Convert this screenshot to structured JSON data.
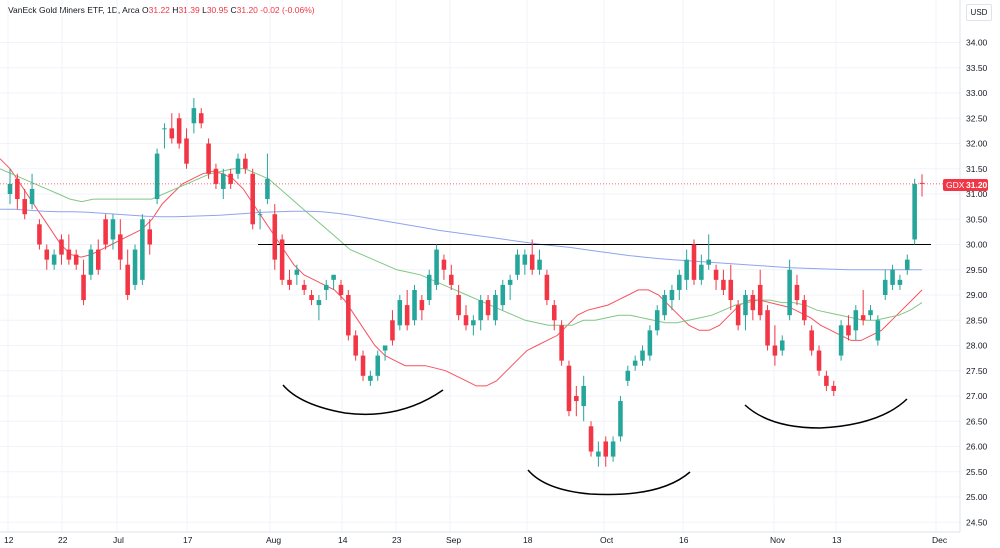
{
  "legend": {
    "symbol": "VanEck Gold Miners ETF, 1D, Arca",
    "o_label": "O",
    "o_value": "31.22",
    "h_label": "H",
    "h_value": "31.39",
    "l_label": "L",
    "l_value": "30.95",
    "c_label": "C",
    "c_value": "31.20",
    "change": "-0.02 (-0.06%)"
  },
  "currency": "USD",
  "colors": {
    "up": "#26a69a",
    "down": "#f23645",
    "ma_fast": "#f7525f",
    "ma_medium": "#81c784",
    "ma_slow": "#8fa4ee",
    "annotation": "#000000",
    "badge": "#f23645",
    "grid": "#f0f3fa"
  },
  "chart_data": {
    "type": "candlestick",
    "title": "VanEck Gold Miners ETF, 1D, Arca",
    "y_ticks": [
      "34.00",
      "33.50",
      "33.00",
      "32.50",
      "32.00",
      "31.50",
      "31.00",
      "30.50",
      "30.00",
      "29.50",
      "29.00",
      "28.50",
      "28.00",
      "27.50",
      "27.00",
      "26.50",
      "26.00",
      "25.50",
      "25.00",
      "24.50"
    ],
    "ylim": [
      24.3,
      34.5
    ],
    "x_ticks": [
      "12",
      "22",
      "Jul",
      "17",
      "Aug",
      "14",
      "23",
      "Sep",
      "18",
      "Oct",
      "16",
      "Nov",
      "13",
      "Dec"
    ],
    "price_badge": {
      "label": "GDX",
      "value": "31.20"
    },
    "resistance_level": 30.0,
    "candles": [
      {
        "o": 31.0,
        "h": 31.5,
        "l": 30.8,
        "c": 31.2
      },
      {
        "o": 31.3,
        "h": 31.4,
        "l": 30.7,
        "c": 30.9
      },
      {
        "o": 30.9,
        "h": 31.1,
        "l": 30.5,
        "c": 30.6
      },
      {
        "o": 30.8,
        "h": 31.4,
        "l": 30.7,
        "c": 31.1
      },
      {
        "o": 30.4,
        "h": 30.5,
        "l": 29.9,
        "c": 30.0
      },
      {
        "o": 29.9,
        "h": 30.0,
        "l": 29.5,
        "c": 29.7
      },
      {
        "o": 29.6,
        "h": 29.9,
        "l": 29.5,
        "c": 29.8
      },
      {
        "o": 30.1,
        "h": 30.2,
        "l": 29.6,
        "c": 29.8
      },
      {
        "o": 29.9,
        "h": 30.2,
        "l": 29.6,
        "c": 29.7
      },
      {
        "o": 29.8,
        "h": 29.9,
        "l": 29.5,
        "c": 29.6
      },
      {
        "o": 29.4,
        "h": 29.7,
        "l": 28.8,
        "c": 28.9
      },
      {
        "o": 29.4,
        "h": 30.0,
        "l": 29.3,
        "c": 29.9
      },
      {
        "o": 29.9,
        "h": 30.1,
        "l": 29.4,
        "c": 29.5
      },
      {
        "o": 30.5,
        "h": 30.6,
        "l": 29.9,
        "c": 30.0
      },
      {
        "o": 30.1,
        "h": 30.6,
        "l": 29.9,
        "c": 30.5
      },
      {
        "o": 30.2,
        "h": 30.5,
        "l": 29.5,
        "c": 29.7
      },
      {
        "o": 29.6,
        "h": 29.9,
        "l": 28.9,
        "c": 29.0
      },
      {
        "o": 29.2,
        "h": 30.0,
        "l": 29.1,
        "c": 29.9
      },
      {
        "o": 29.3,
        "h": 30.6,
        "l": 29.2,
        "c": 30.5
      },
      {
        "o": 30.3,
        "h": 30.5,
        "l": 29.8,
        "c": 30.0
      },
      {
        "o": 30.9,
        "h": 31.9,
        "l": 30.8,
        "c": 31.8
      },
      {
        "o": 32.3,
        "h": 32.4,
        "l": 31.9,
        "c": 32.3
      },
      {
        "o": 32.3,
        "h": 32.6,
        "l": 32.0,
        "c": 32.1
      },
      {
        "o": 32.5,
        "h": 32.6,
        "l": 31.9,
        "c": 32.0
      },
      {
        "o": 32.1,
        "h": 32.3,
        "l": 31.5,
        "c": 31.6
      },
      {
        "o": 32.4,
        "h": 32.9,
        "l": 32.2,
        "c": 32.7
      },
      {
        "o": 32.6,
        "h": 32.7,
        "l": 32.3,
        "c": 32.4
      },
      {
        "o": 32.0,
        "h": 32.1,
        "l": 31.3,
        "c": 31.4
      },
      {
        "o": 31.5,
        "h": 31.6,
        "l": 31.1,
        "c": 31.2
      },
      {
        "o": 31.1,
        "h": 31.5,
        "l": 30.9,
        "c": 31.4
      },
      {
        "o": 31.4,
        "h": 31.5,
        "l": 31.1,
        "c": 31.2
      },
      {
        "o": 31.4,
        "h": 31.8,
        "l": 31.3,
        "c": 31.7
      },
      {
        "o": 31.7,
        "h": 31.8,
        "l": 31.4,
        "c": 31.5
      },
      {
        "o": 31.4,
        "h": 31.5,
        "l": 30.3,
        "c": 30.4
      },
      {
        "o": 30.6,
        "h": 30.7,
        "l": 30.3,
        "c": 30.6
      },
      {
        "o": 30.9,
        "h": 31.8,
        "l": 30.8,
        "c": 31.3
      },
      {
        "o": 30.6,
        "h": 30.8,
        "l": 29.5,
        "c": 29.7
      },
      {
        "o": 30.1,
        "h": 30.2,
        "l": 29.2,
        "c": 29.3
      },
      {
        "o": 29.3,
        "h": 29.5,
        "l": 29.1,
        "c": 29.2
      },
      {
        "o": 29.4,
        "h": 29.6,
        "l": 29.2,
        "c": 29.5
      },
      {
        "o": 29.2,
        "h": 29.3,
        "l": 29.0,
        "c": 29.1
      },
      {
        "o": 29.0,
        "h": 29.1,
        "l": 28.8,
        "c": 28.9
      },
      {
        "o": 28.8,
        "h": 29.0,
        "l": 28.5,
        "c": 28.9
      },
      {
        "o": 29.1,
        "h": 29.3,
        "l": 28.9,
        "c": 29.2
      },
      {
        "o": 29.3,
        "h": 29.4,
        "l": 29.1,
        "c": 29.4
      },
      {
        "o": 29.2,
        "h": 29.3,
        "l": 28.9,
        "c": 29.0
      },
      {
        "o": 29.0,
        "h": 29.1,
        "l": 28.1,
        "c": 28.2
      },
      {
        "o": 28.2,
        "h": 28.3,
        "l": 27.7,
        "c": 27.8
      },
      {
        "o": 27.8,
        "h": 27.9,
        "l": 27.3,
        "c": 27.4
      },
      {
        "o": 27.3,
        "h": 27.5,
        "l": 27.2,
        "c": 27.4
      },
      {
        "o": 27.4,
        "h": 27.9,
        "l": 27.3,
        "c": 27.8
      },
      {
        "o": 27.9,
        "h": 28.0,
        "l": 27.7,
        "c": 28.0
      },
      {
        "o": 28.5,
        "h": 28.7,
        "l": 28.0,
        "c": 28.1
      },
      {
        "o": 28.4,
        "h": 29.0,
        "l": 28.3,
        "c": 28.9
      },
      {
        "o": 28.8,
        "h": 29.1,
        "l": 28.3,
        "c": 28.4
      },
      {
        "o": 28.5,
        "h": 29.2,
        "l": 28.4,
        "c": 29.1
      },
      {
        "o": 28.9,
        "h": 29.0,
        "l": 28.5,
        "c": 28.7
      },
      {
        "o": 28.9,
        "h": 29.5,
        "l": 28.8,
        "c": 29.4
      },
      {
        "o": 29.2,
        "h": 30.0,
        "l": 29.1,
        "c": 29.9
      },
      {
        "o": 29.7,
        "h": 29.8,
        "l": 29.3,
        "c": 29.5
      },
      {
        "o": 29.4,
        "h": 29.6,
        "l": 29.1,
        "c": 29.2
      },
      {
        "o": 29.0,
        "h": 29.2,
        "l": 28.5,
        "c": 28.6
      },
      {
        "o": 28.6,
        "h": 28.8,
        "l": 28.3,
        "c": 28.4
      },
      {
        "o": 28.4,
        "h": 28.6,
        "l": 28.2,
        "c": 28.5
      },
      {
        "o": 28.5,
        "h": 29.0,
        "l": 28.3,
        "c": 28.9
      },
      {
        "o": 28.9,
        "h": 29.0,
        "l": 28.5,
        "c": 28.6
      },
      {
        "o": 28.5,
        "h": 29.1,
        "l": 28.4,
        "c": 29.0
      },
      {
        "o": 28.8,
        "h": 29.3,
        "l": 28.7,
        "c": 29.2
      },
      {
        "o": 29.2,
        "h": 29.4,
        "l": 28.9,
        "c": 29.3
      },
      {
        "o": 29.4,
        "h": 29.9,
        "l": 29.3,
        "c": 29.8
      },
      {
        "o": 29.6,
        "h": 29.9,
        "l": 29.4,
        "c": 29.8
      },
      {
        "o": 29.8,
        "h": 30.1,
        "l": 29.4,
        "c": 29.5
      },
      {
        "o": 29.5,
        "h": 29.9,
        "l": 29.4,
        "c": 29.7
      },
      {
        "o": 29.4,
        "h": 29.5,
        "l": 28.8,
        "c": 28.9
      },
      {
        "o": 28.8,
        "h": 28.9,
        "l": 28.3,
        "c": 28.5
      },
      {
        "o": 28.4,
        "h": 28.5,
        "l": 27.6,
        "c": 27.7
      },
      {
        "o": 27.6,
        "h": 27.7,
        "l": 26.6,
        "c": 26.7
      },
      {
        "o": 27.0,
        "h": 27.2,
        "l": 26.6,
        "c": 26.9
      },
      {
        "o": 26.8,
        "h": 27.4,
        "l": 26.5,
        "c": 27.2
      },
      {
        "o": 26.4,
        "h": 26.5,
        "l": 25.8,
        "c": 25.9
      },
      {
        "o": 25.8,
        "h": 26.1,
        "l": 25.6,
        "c": 25.9
      },
      {
        "o": 26.1,
        "h": 26.2,
        "l": 25.6,
        "c": 25.8
      },
      {
        "o": 25.8,
        "h": 26.2,
        "l": 25.7,
        "c": 26.1
      },
      {
        "o": 26.2,
        "h": 27.0,
        "l": 26.1,
        "c": 26.9
      },
      {
        "o": 27.3,
        "h": 27.6,
        "l": 27.2,
        "c": 27.5
      },
      {
        "o": 27.6,
        "h": 27.8,
        "l": 27.5,
        "c": 27.7
      },
      {
        "o": 27.7,
        "h": 28.0,
        "l": 27.6,
        "c": 27.9
      },
      {
        "o": 27.8,
        "h": 28.4,
        "l": 27.7,
        "c": 28.3
      },
      {
        "o": 28.3,
        "h": 28.8,
        "l": 28.2,
        "c": 28.7
      },
      {
        "o": 28.6,
        "h": 29.1,
        "l": 28.5,
        "c": 29.0
      },
      {
        "o": 28.9,
        "h": 29.2,
        "l": 28.7,
        "c": 29.1
      },
      {
        "o": 29.1,
        "h": 29.5,
        "l": 28.9,
        "c": 29.4
      },
      {
        "o": 29.3,
        "h": 29.9,
        "l": 29.1,
        "c": 29.7
      },
      {
        "o": 30.0,
        "h": 30.1,
        "l": 29.2,
        "c": 29.3
      },
      {
        "o": 29.3,
        "h": 29.8,
        "l": 29.2,
        "c": 29.6
      },
      {
        "o": 29.6,
        "h": 30.2,
        "l": 29.5,
        "c": 29.7
      },
      {
        "o": 29.5,
        "h": 29.6,
        "l": 29.1,
        "c": 29.3
      },
      {
        "o": 29.3,
        "h": 29.5,
        "l": 29.0,
        "c": 29.1
      },
      {
        "o": 29.3,
        "h": 29.6,
        "l": 28.7,
        "c": 28.9
      },
      {
        "o": 28.8,
        "h": 28.9,
        "l": 28.3,
        "c": 28.4
      },
      {
        "o": 28.6,
        "h": 29.1,
        "l": 28.3,
        "c": 29.0
      },
      {
        "o": 29.0,
        "h": 29.1,
        "l": 28.5,
        "c": 28.7
      },
      {
        "o": 29.2,
        "h": 29.5,
        "l": 28.5,
        "c": 28.6
      },
      {
        "o": 28.7,
        "h": 28.8,
        "l": 27.9,
        "c": 28.0
      },
      {
        "o": 28.0,
        "h": 28.4,
        "l": 27.6,
        "c": 27.8
      },
      {
        "o": 27.9,
        "h": 28.2,
        "l": 27.8,
        "c": 28.1
      },
      {
        "o": 28.6,
        "h": 29.7,
        "l": 28.5,
        "c": 29.5
      },
      {
        "o": 29.2,
        "h": 29.4,
        "l": 28.8,
        "c": 28.9
      },
      {
        "o": 28.9,
        "h": 29.0,
        "l": 28.4,
        "c": 28.5
      },
      {
        "o": 28.3,
        "h": 28.4,
        "l": 27.8,
        "c": 27.9
      },
      {
        "o": 27.9,
        "h": 28.0,
        "l": 27.4,
        "c": 27.5
      },
      {
        "o": 27.4,
        "h": 27.5,
        "l": 27.1,
        "c": 27.2
      },
      {
        "o": 27.2,
        "h": 27.3,
        "l": 27.0,
        "c": 27.1
      },
      {
        "o": 27.8,
        "h": 28.5,
        "l": 27.7,
        "c": 28.4
      },
      {
        "o": 28.4,
        "h": 28.6,
        "l": 28.1,
        "c": 28.2
      },
      {
        "o": 28.3,
        "h": 28.8,
        "l": 28.1,
        "c": 28.7
      },
      {
        "o": 28.6,
        "h": 29.1,
        "l": 28.4,
        "c": 28.5
      },
      {
        "o": 28.6,
        "h": 28.8,
        "l": 28.5,
        "c": 28.7
      },
      {
        "o": 28.1,
        "h": 28.6,
        "l": 28.0,
        "c": 28.5
      },
      {
        "o": 29.0,
        "h": 29.5,
        "l": 28.9,
        "c": 29.3
      },
      {
        "o": 29.2,
        "h": 29.6,
        "l": 29.1,
        "c": 29.5
      },
      {
        "o": 29.2,
        "h": 29.4,
        "l": 29.1,
        "c": 29.3
      },
      {
        "o": 29.5,
        "h": 29.8,
        "l": 29.4,
        "c": 29.7
      },
      {
        "o": 30.1,
        "h": 31.3,
        "l": 30.0,
        "c": 31.2
      },
      {
        "o": 31.22,
        "h": 31.39,
        "l": 30.95,
        "c": 31.2
      }
    ],
    "moving_averages": [
      {
        "color": "#f7525f",
        "values": [
          31.7,
          31.5,
          31.2,
          30.9,
          30.6,
          30.3,
          30.0,
          29.8,
          29.75,
          29.8,
          29.9,
          30.0,
          30.1,
          30.2,
          30.3,
          30.5,
          30.8,
          31.0,
          31.2,
          31.3,
          31.4,
          31.45,
          31.4,
          31.3,
          31.1,
          30.8,
          30.5,
          30.2,
          29.9,
          29.6,
          29.4,
          29.3,
          29.2,
          29.1,
          28.9,
          28.6,
          28.3,
          28.0,
          27.8,
          27.7,
          27.6,
          27.6,
          27.6,
          27.55,
          27.5,
          27.4,
          27.3,
          27.2,
          27.2,
          27.3,
          27.5,
          27.7,
          27.9,
          28.0,
          28.1,
          28.2,
          28.4,
          28.6,
          28.7,
          28.75,
          28.8,
          28.9,
          29.0,
          29.1,
          29.1,
          29.0,
          28.8,
          28.6,
          28.4,
          28.3,
          28.3,
          28.4,
          28.6,
          28.8,
          28.9,
          28.9,
          28.85,
          28.8,
          28.75,
          28.65,
          28.55,
          28.4,
          28.3,
          28.2,
          28.1,
          28.1,
          28.2,
          28.3,
          28.5,
          28.7,
          28.9,
          29.1
        ]
      },
      {
        "color": "#81c784",
        "values": [
          31.5,
          31.4,
          31.3,
          31.2,
          31.1,
          31.0,
          30.9,
          30.85,
          30.9,
          30.9,
          30.9,
          30.9,
          30.9,
          30.9,
          31.0,
          31.1,
          31.2,
          31.3,
          31.4,
          31.45,
          31.5,
          31.5,
          31.4,
          31.3,
          31.1,
          30.9,
          30.7,
          30.5,
          30.3,
          30.1,
          29.9,
          29.8,
          29.7,
          29.6,
          29.5,
          29.45,
          29.4,
          29.3,
          29.2,
          29.1,
          29.0,
          28.9,
          28.8,
          28.7,
          28.6,
          28.5,
          28.45,
          28.4,
          28.4,
          28.4,
          28.5,
          28.5,
          28.55,
          28.6,
          28.6,
          28.55,
          28.5,
          28.45,
          28.45,
          28.5,
          28.55,
          28.6,
          28.7,
          28.8,
          28.85,
          28.9,
          28.9,
          28.85,
          28.85,
          28.8,
          28.7,
          28.65,
          28.6,
          28.55,
          28.5,
          28.5,
          28.55,
          28.6,
          28.7,
          28.85
        ]
      },
      {
        "color": "#8fa4ee",
        "values": [
          30.7,
          30.7,
          30.68,
          30.66,
          30.65,
          30.65,
          30.64,
          30.62,
          30.6,
          30.58,
          30.56,
          30.55,
          30.55,
          30.56,
          30.57,
          30.58,
          30.6,
          30.62,
          30.64,
          30.65,
          30.66,
          30.66,
          30.65,
          30.62,
          30.58,
          30.53,
          30.48,
          30.43,
          30.38,
          30.33,
          30.28,
          30.24,
          30.2,
          30.16,
          30.12,
          30.08,
          30.04,
          30.0,
          29.97,
          29.94,
          29.9,
          29.86,
          29.82,
          29.78,
          29.75,
          29.72,
          29.7,
          29.68,
          29.66,
          29.64,
          29.62,
          29.6,
          29.58,
          29.56,
          29.54,
          29.53,
          29.52,
          29.51,
          29.5,
          29.5,
          29.5,
          29.5,
          29.5,
          29.5
        ]
      }
    ]
  }
}
